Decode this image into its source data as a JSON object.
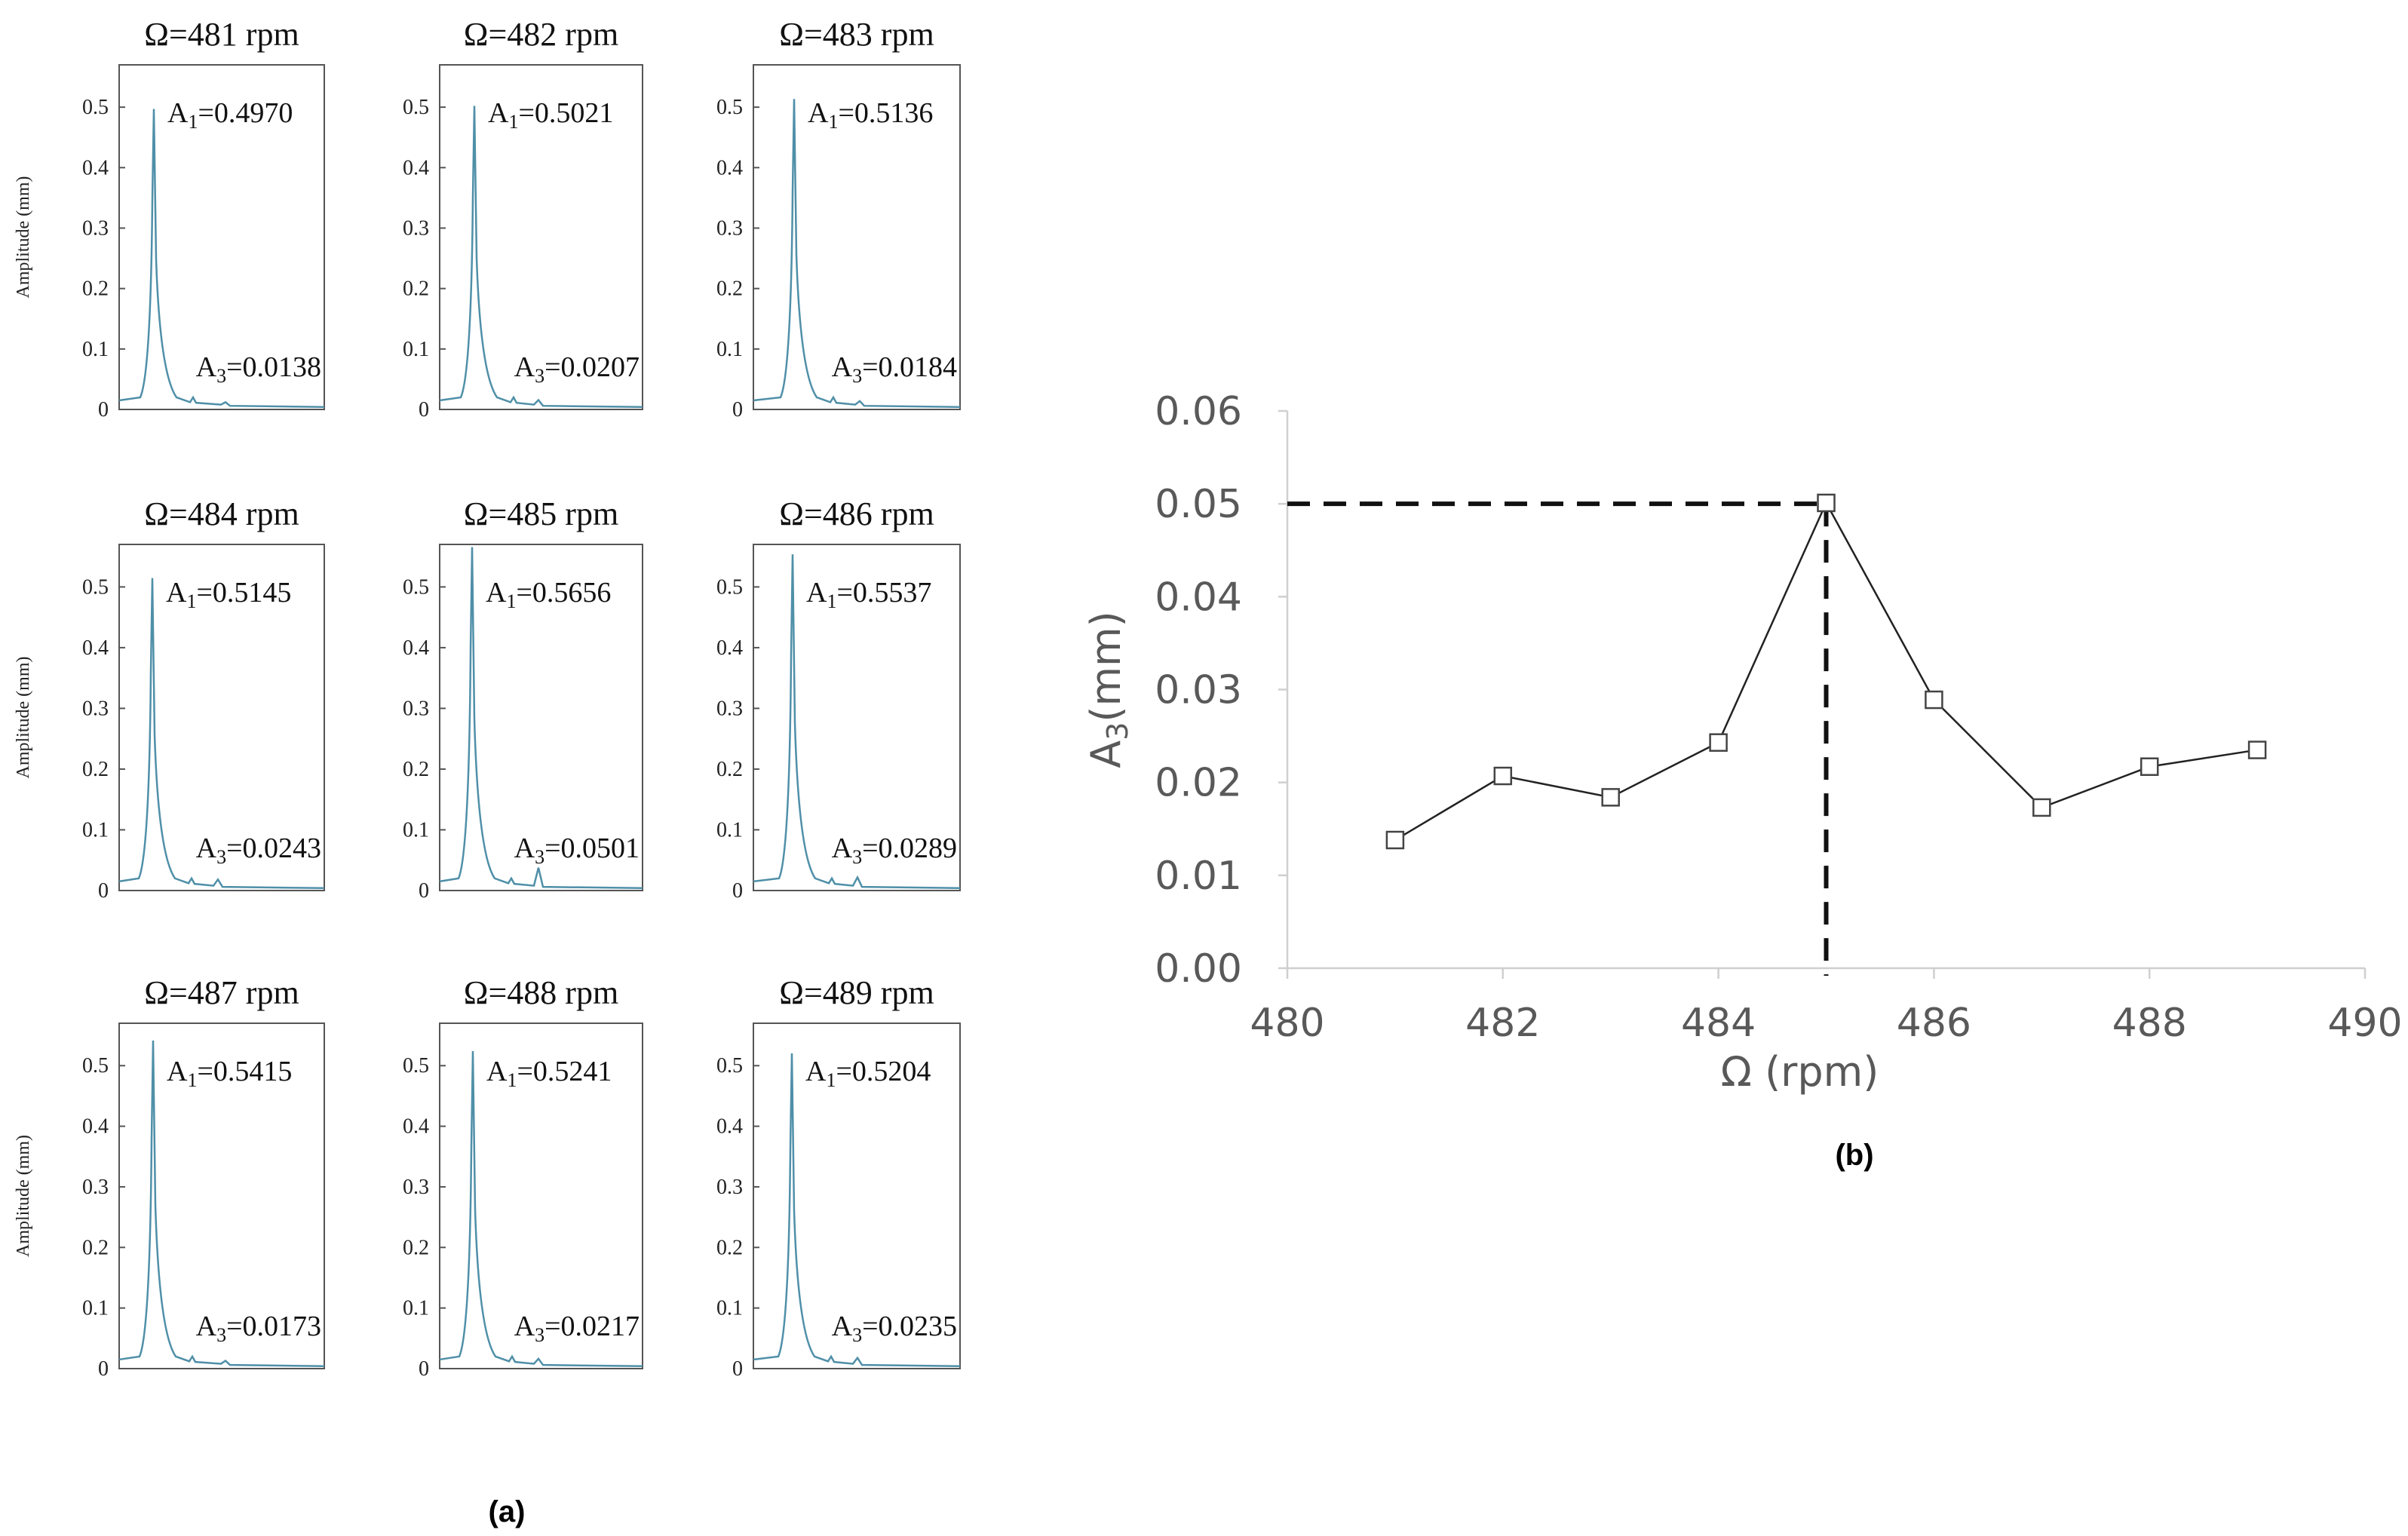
{
  "figure": {
    "panel_a_caption": "(a)",
    "panel_b_caption": "(b)"
  },
  "chart_data": [
    {
      "type": "line",
      "panel": "(a)",
      "layout": "3x3 grid of frequency spectra",
      "ylabel": "Amplitude (mm)",
      "yticks": [
        "0",
        "0.1",
        "0.2",
        "0.3",
        "0.4",
        "0.5"
      ],
      "ylim": [
        0,
        0.57
      ],
      "line_color": "#4f8fa8",
      "subplots": [
        {
          "title": "Ω=481 rpm",
          "a1_label": "A",
          "a1_sub": "1",
          "a1_value": "=0.4970",
          "a3_label": "A",
          "a3_sub": "3",
          "a3_value": "=0.0138",
          "a1": 0.497,
          "a3": 0.0138
        },
        {
          "title": "Ω=482 rpm",
          "a1_label": "A",
          "a1_sub": "1",
          "a1_value": "=0.5021",
          "a3_label": "A",
          "a3_sub": "3",
          "a3_value": "=0.0207",
          "a1": 0.5021,
          "a3": 0.0207
        },
        {
          "title": "Ω=483 rpm",
          "a1_label": "A",
          "a1_sub": "1",
          "a1_value": "=0.5136",
          "a3_label": "A",
          "a3_sub": "3",
          "a3_value": "=0.0184",
          "a1": 0.5136,
          "a3": 0.0184
        },
        {
          "title": "Ω=484 rpm",
          "a1_label": "A",
          "a1_sub": "1",
          "a1_value": "=0.5145",
          "a3_label": "A",
          "a3_sub": "3",
          "a3_value": "=0.0243",
          "a1": 0.5145,
          "a3": 0.0243
        },
        {
          "title": "Ω=485 rpm",
          "a1_label": "A",
          "a1_sub": "1",
          "a1_value": "=0.5656",
          "a3_label": "A",
          "a3_sub": "3",
          "a3_value": "=0.0501",
          "a1": 0.5656,
          "a3": 0.0501
        },
        {
          "title": "Ω=486 rpm",
          "a1_label": "A",
          "a1_sub": "1",
          "a1_value": "=0.5537",
          "a3_label": "A",
          "a3_sub": "3",
          "a3_value": "=0.0289",
          "a1": 0.5537,
          "a3": 0.0289
        },
        {
          "title": "Ω=487 rpm",
          "a1_label": "A",
          "a1_sub": "1",
          "a1_value": "=0.5415",
          "a3_label": "A",
          "a3_sub": "3",
          "a3_value": "=0.0173",
          "a1": 0.5415,
          "a3": 0.0173
        },
        {
          "title": "Ω=488 rpm",
          "a1_label": "A",
          "a1_sub": "1",
          "a1_value": "=0.5241",
          "a3_label": "A",
          "a3_sub": "3",
          "a3_value": "=0.0217",
          "a1": 0.5241,
          "a3": 0.0217
        },
        {
          "title": "Ω=489 rpm",
          "a1_label": "A",
          "a1_sub": "1",
          "a1_value": "=0.5204",
          "a3_label": "A",
          "a3_sub": "3",
          "a3_value": "=0.0235",
          "a1": 0.5204,
          "a3": 0.0235
        }
      ]
    },
    {
      "type": "line",
      "panel": "(b)",
      "title": "",
      "xlabel": "Ω (rpm)",
      "ylabel": "A",
      "ylabel_sub": "3",
      "ylabel_unit": "(mm)",
      "x": [
        481,
        482,
        483,
        484,
        485,
        486,
        487,
        488,
        489
      ],
      "y": [
        0.0138,
        0.0207,
        0.0184,
        0.0243,
        0.0501,
        0.0289,
        0.0173,
        0.0217,
        0.0235
      ],
      "xlim": [
        480,
        490
      ],
      "ylim": [
        0,
        0.06
      ],
      "xticks": [
        "480",
        "482",
        "484",
        "486",
        "488",
        "490"
      ],
      "yticks": [
        "0.00",
        "0.01",
        "0.02",
        "0.03",
        "0.04",
        "0.05",
        "0.06"
      ],
      "marker": "hollow-square",
      "line_color": "#222222",
      "grid": false,
      "annotation": {
        "type": "dashed-crosshair",
        "x": 485,
        "y": 0.05
      }
    }
  ]
}
